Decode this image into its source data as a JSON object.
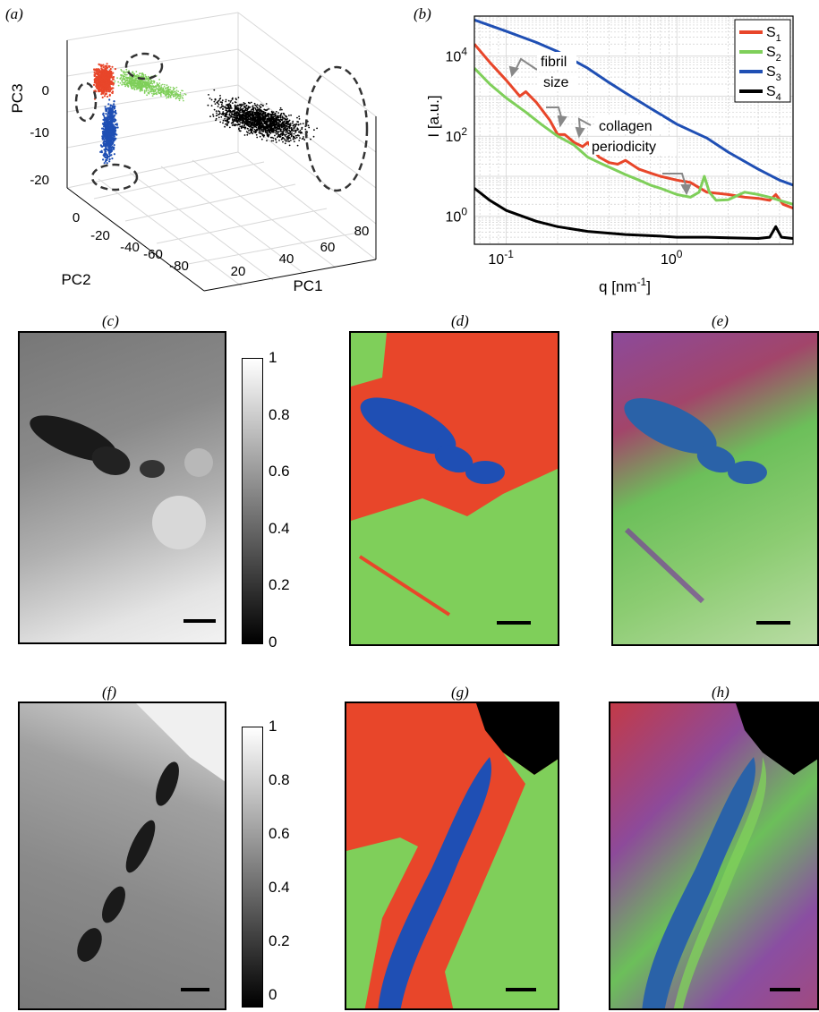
{
  "panels": {
    "a": "(a)",
    "b": "(b)",
    "c": "(c)",
    "d": "(d)",
    "e": "(e)",
    "f": "(f)",
    "g": "(g)",
    "h": "(h)"
  },
  "colors": {
    "S1": "#e8462a",
    "S2": "#7fcf5a",
    "S3": "#1f4fb4",
    "S4": "#000000"
  },
  "chart_data": [
    {
      "type": "scatter",
      "panel": "a",
      "xlabel": "PC1",
      "ylabel": "PC2",
      "zlabel": "PC3",
      "x_ticks": [
        "20",
        "40",
        "60",
        "80"
      ],
      "y_ticks": [
        "0",
        "-20",
        "-40",
        "-60",
        "-80"
      ],
      "z_ticks": [
        "0",
        "-10",
        "-20"
      ],
      "series": [
        {
          "color": "#e8462a"
        },
        {
          "color": "#7fcf5a"
        },
        {
          "color": "#1f4fb4"
        },
        {
          "color": "#000000"
        }
      ]
    },
    {
      "type": "line",
      "panel": "b",
      "xlabel": "q [nm",
      "xlabel_sup": "-1",
      "xlabel_end": "]",
      "ylabel": "I [a.u.]",
      "xscale": "log",
      "yscale": "log",
      "xlim": [
        0.065,
        4.8
      ],
      "ylim": [
        0.2,
        100000
      ],
      "x_ticks": [
        {
          "base": "10",
          "exp": "-1"
        },
        {
          "base": "10",
          "exp": "0"
        }
      ],
      "y_ticks": [
        {
          "base": "10",
          "exp": "0"
        },
        {
          "base": "10",
          "exp": "2"
        },
        {
          "base": "10",
          "exp": "4"
        }
      ],
      "grid": true,
      "legend": "top-right",
      "annotations": [
        "fibril",
        "size",
        "collagen",
        "periodicity"
      ],
      "series": [
        {
          "name": "S",
          "sub": "1",
          "color": "#e8462a",
          "x": [
            0.065,
            0.08,
            0.1,
            0.12,
            0.13,
            0.15,
            0.18,
            0.2,
            0.22,
            0.25,
            0.28,
            0.3,
            0.35,
            0.4,
            0.45,
            0.5,
            0.6,
            0.7,
            0.8,
            1.0,
            1.2,
            1.5,
            2.0,
            2.5,
            3.0,
            3.5,
            3.8,
            4.2,
            4.8
          ],
          "y": [
            20000,
            7000,
            2500,
            1000,
            1300,
            700,
            250,
            110,
            110,
            70,
            55,
            70,
            30,
            22,
            20,
            25,
            15,
            12,
            10,
            8,
            7,
            4,
            3.5,
            3,
            2.8,
            2.5,
            3.5,
            2,
            1.6
          ]
        },
        {
          "name": "S",
          "sub": "2",
          "color": "#7fcf5a",
          "x": [
            0.065,
            0.08,
            0.1,
            0.13,
            0.16,
            0.2,
            0.25,
            0.3,
            0.35,
            0.4,
            0.5,
            0.6,
            0.7,
            0.8,
            1.0,
            1.2,
            1.35,
            1.45,
            1.55,
            1.7,
            2.0,
            2.5,
            3.0,
            3.5,
            4.0,
            4.8
          ],
          "y": [
            5000,
            2000,
            900,
            400,
            200,
            100,
            60,
            30,
            22,
            17,
            11,
            8,
            6,
            5,
            3.5,
            3,
            4,
            10,
            4,
            2.5,
            2.6,
            4,
            3.5,
            3,
            2.5,
            2
          ]
        },
        {
          "name": "S",
          "sub": "3",
          "color": "#1f4fb4",
          "x": [
            0.065,
            0.1,
            0.15,
            0.2,
            0.3,
            0.4,
            0.5,
            0.7,
            1.0,
            1.5,
            2.0,
            3.0,
            4.0,
            4.8
          ],
          "y": [
            80000,
            42000,
            22000,
            13000,
            5000,
            2200,
            1200,
            500,
            200,
            90,
            40,
            15,
            8,
            6
          ]
        },
        {
          "name": "S",
          "sub": "4",
          "color": "#000000",
          "x": [
            0.065,
            0.08,
            0.1,
            0.15,
            0.2,
            0.3,
            0.5,
            0.8,
            1.0,
            1.5,
            2.0,
            3.0,
            3.5,
            3.8,
            4.1,
            4.8
          ],
          "y": [
            5,
            2.5,
            1.4,
            0.75,
            0.55,
            0.42,
            0.35,
            0.32,
            0.3,
            0.3,
            0.29,
            0.28,
            0.3,
            0.55,
            0.3,
            0.28
          ]
        }
      ]
    }
  ],
  "colorbar_ticks": [
    "0",
    "0.2",
    "0.4",
    "0.6",
    "0.8",
    "1"
  ]
}
